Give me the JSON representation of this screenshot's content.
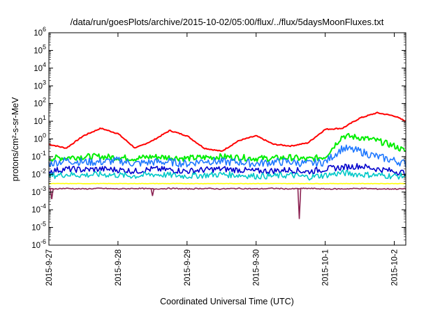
{
  "chart_data": {
    "type": "line",
    "title": "/data/run/goesPlots/archive/2015-10-02/05:00/flux/../flux/5daysMoonFluxes.txt",
    "xlabel": "Coordinated Universal Time (UTC)",
    "ylabel": "protons/cm²-s-sr-MeV",
    "y_scale": "log",
    "ylim": [
      1e-06,
      1000000.0
    ],
    "xlim": [
      "2015-09-27T00:00",
      "2015-10-02T04:00"
    ],
    "x_ticks": [
      "2015-9-27",
      "2015-9-28",
      "2015-9-29",
      "2015-9-30",
      "2015-10-1",
      "2015-10-2"
    ],
    "y_ticks": [
      {
        "base": "10",
        "exp": "-6",
        "value": 1e-06
      },
      {
        "base": "10",
        "exp": "-5",
        "value": 1e-05
      },
      {
        "base": "10",
        "exp": "-4",
        "value": 0.0001
      },
      {
        "base": "10",
        "exp": "-3",
        "value": 0.001
      },
      {
        "base": "10",
        "exp": "-2",
        "value": 0.01
      },
      {
        "base": "10",
        "exp": "-1",
        "value": 0.1
      },
      {
        "base": "10",
        "exp": "0",
        "value": 1
      },
      {
        "base": "10",
        "exp": "1",
        "value": 10
      },
      {
        "base": "10",
        "exp": "2",
        "value": 100
      },
      {
        "base": "10",
        "exp": "3",
        "value": 1000
      },
      {
        "base": "10",
        "exp": "4",
        "value": 10000
      },
      {
        "base": "10",
        "exp": "5",
        "value": 100000
      },
      {
        "base": "10",
        "exp": "6",
        "value": 1000000
      }
    ],
    "grid": false,
    "legend": "none",
    "x": [
      "2015-09-27T00:00",
      "2015-09-27T06:00",
      "2015-09-27T12:00",
      "2015-09-27T18:00",
      "2015-09-28T00:00",
      "2015-09-28T06:00",
      "2015-09-28T12:00",
      "2015-09-28T18:00",
      "2015-09-29T00:00",
      "2015-09-29T06:00",
      "2015-09-29T12:00",
      "2015-09-29T18:00",
      "2015-09-30T00:00",
      "2015-09-30T06:00",
      "2015-09-30T12:00",
      "2015-09-30T18:00",
      "2015-10-01T00:00",
      "2015-10-01T06:00",
      "2015-10-01T12:00",
      "2015-10-01T18:00",
      "2015-10-02T00:00",
      "2015-10-02T04:00"
    ],
    "series": [
      {
        "color": "#ff0000",
        "values": [
          0.5,
          0.3,
          1.5,
          4.0,
          2.0,
          0.3,
          0.8,
          3.0,
          1.5,
          0.3,
          0.2,
          0.8,
          1.5,
          0.5,
          0.4,
          0.6,
          3.5,
          4.0,
          15,
          30,
          20,
          10
        ]
      },
      {
        "color": "#00ee00",
        "values": [
          0.08,
          0.09,
          0.1,
          0.1,
          0.09,
          0.08,
          0.1,
          0.09,
          0.08,
          0.09,
          0.1,
          0.09,
          0.08,
          0.08,
          0.09,
          0.07,
          0.1,
          1.5,
          1.2,
          0.8,
          0.4,
          0.2
        ]
      },
      {
        "color": "#1e78ff",
        "values": [
          0.04,
          0.06,
          0.05,
          0.05,
          0.06,
          0.04,
          0.05,
          0.05,
          0.04,
          0.06,
          0.05,
          0.05,
          0.04,
          0.05,
          0.05,
          0.04,
          0.05,
          0.3,
          0.2,
          0.1,
          0.06,
          0.04
        ]
      },
      {
        "color": "#0000cc",
        "values": [
          0.015,
          0.02,
          0.018,
          0.02,
          0.018,
          0.015,
          0.02,
          0.018,
          0.015,
          0.018,
          0.02,
          0.018,
          0.015,
          0.016,
          0.018,
          0.014,
          0.02,
          0.025,
          0.03,
          0.02,
          0.015,
          0.012
        ]
      },
      {
        "color": "#00c8c8",
        "values": [
          0.008,
          0.01,
          0.009,
          0.01,
          0.009,
          0.008,
          0.01,
          0.009,
          0.008,
          0.009,
          0.01,
          0.009,
          0.008,
          0.008,
          0.009,
          0.007,
          0.009,
          0.012,
          0.01,
          0.009,
          0.008,
          0.008
        ]
      },
      {
        "color": "#ffff00",
        "values": [
          0.003,
          0.003,
          0.003,
          0.003,
          0.003,
          0.003,
          0.003,
          0.003,
          0.003,
          0.003,
          0.003,
          0.003,
          0.003,
          0.003,
          0.003,
          0.003,
          0.003,
          0.003,
          0.003,
          0.003,
          0.003,
          0.003
        ]
      },
      {
        "color": "#8b2252",
        "values": [
          0.0015,
          0.0016,
          0.0015,
          0.0016,
          0.0015,
          0.0016,
          0.0015,
          0.0016,
          0.0015,
          0.0016,
          0.0015,
          0.0016,
          0.0015,
          0.0016,
          0.0015,
          0.0016,
          0.0015,
          0.0015,
          0.0016,
          0.0015,
          0.0015,
          0.0015
        ]
      }
    ],
    "dips": [
      {
        "series_index": 6,
        "x": "2015-09-27T01:00",
        "value": 0.0004
      },
      {
        "series_index": 6,
        "x": "2015-09-28T12:00",
        "value": 0.0006
      },
      {
        "series_index": 6,
        "x": "2015-09-30T15:00",
        "value": 3e-05
      }
    ]
  }
}
